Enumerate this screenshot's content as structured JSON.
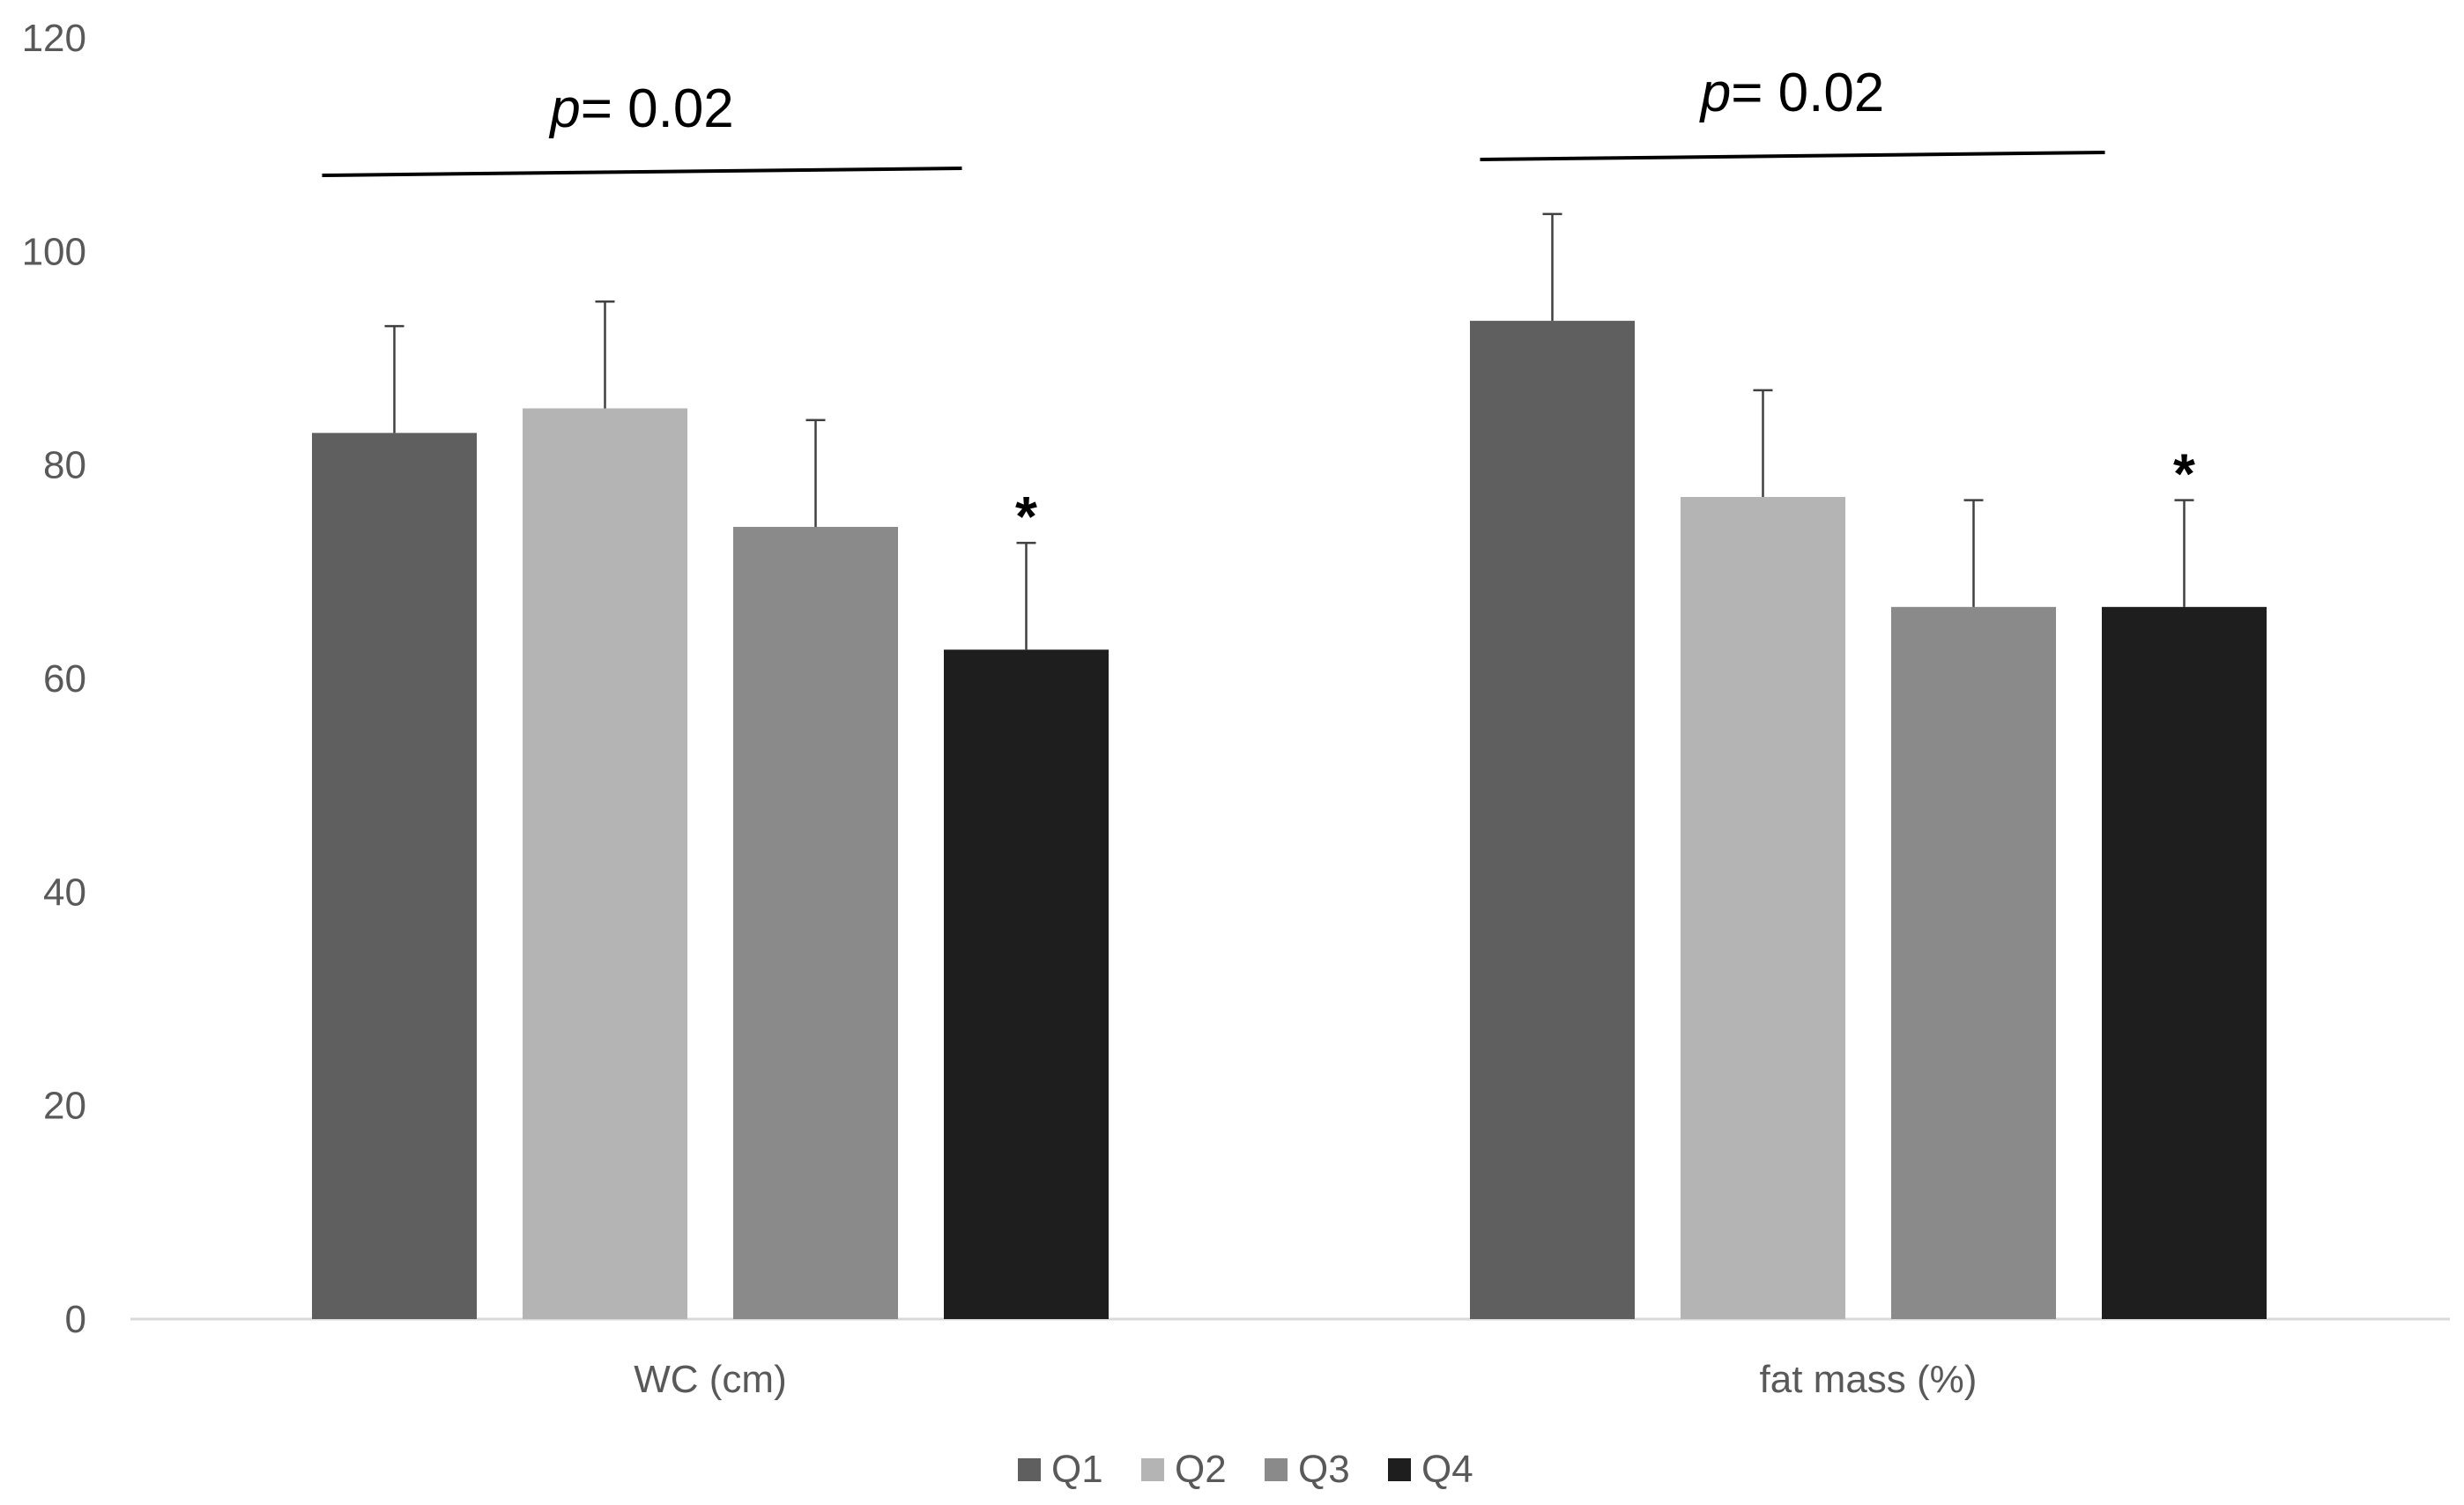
{
  "chart_data": {
    "type": "bar",
    "title": "",
    "xlabel": "",
    "ylabel": "",
    "ylim": [
      0,
      120
    ],
    "yticks": [
      0,
      20,
      40,
      60,
      80,
      100,
      120
    ],
    "categories": [
      "WC (cm)",
      "fat mass (%)"
    ],
    "series": [
      {
        "name": "Q1",
        "color": "#5f5f5f",
        "values": [
          83,
          93.5
        ],
        "errors": [
          10,
          10
        ]
      },
      {
        "name": "Q2",
        "color": "#b4b4b4",
        "values": [
          85.3,
          77
        ],
        "errors": [
          10,
          10
        ]
      },
      {
        "name": "Q3",
        "color": "#8a8a8a",
        "values": [
          74.2,
          66.7
        ],
        "errors": [
          10,
          10
        ]
      },
      {
        "name": "Q4",
        "color": "#1e1e1e",
        "values": [
          62.7,
          66.7
        ],
        "errors": [
          10,
          10
        ]
      }
    ],
    "significance": [
      {
        "category": "WC (cm)",
        "prefix": "p",
        "text": "= 0.02",
        "marker": "*",
        "marker_series": "Q4"
      },
      {
        "category": "fat mass (%)",
        "prefix": "p",
        "text": "= 0.02",
        "marker": "*",
        "marker_series": "Q4"
      }
    ],
    "legend": {
      "position": "bottom",
      "entries": [
        "Q1",
        "Q2",
        "Q3",
        "Q4"
      ]
    },
    "grid": false
  }
}
